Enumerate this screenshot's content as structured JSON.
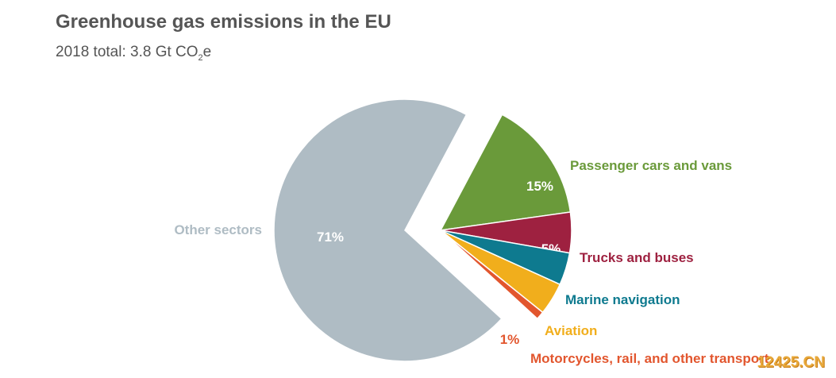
{
  "title": "Greenhouse gas emissions in the EU",
  "subtitle": {
    "prefix": "2018 total: 3.8 Gt CO",
    "subscript": "2",
    "suffix": "e"
  },
  "watermark": "12425.CN",
  "chart_data": {
    "type": "pie",
    "title": "Greenhouse gas emissions in the EU",
    "subtitle": "2018 total: 3.8 Gt CO2e",
    "slices": [
      {
        "label": "Passenger cars and vans",
        "value": 15,
        "value_label": "15%",
        "color": "#6a9a3a"
      },
      {
        "label": "Trucks and buses",
        "value": 5,
        "value_label": "5%",
        "color": "#9e2140"
      },
      {
        "label": "Marine navigation",
        "value": 4,
        "value_label": "4%",
        "color": "#0e7a8f"
      },
      {
        "label": "Aviation",
        "value": 4,
        "value_label": "4%",
        "color": "#f1ae1c"
      },
      {
        "label": "Motorcycles, rail, and other transport",
        "value": 1,
        "value_label": "1%",
        "color": "#e2562e"
      },
      {
        "label": "Other sectors",
        "value": 71,
        "value_label": "71%",
        "color": "#afbcc4"
      }
    ],
    "exploded": [
      "Passenger cars and vans",
      "Trucks and buses",
      "Marine navigation",
      "Aviation",
      "Motorcycles, rail, and other transport"
    ],
    "legend": "none (direct labels)"
  }
}
